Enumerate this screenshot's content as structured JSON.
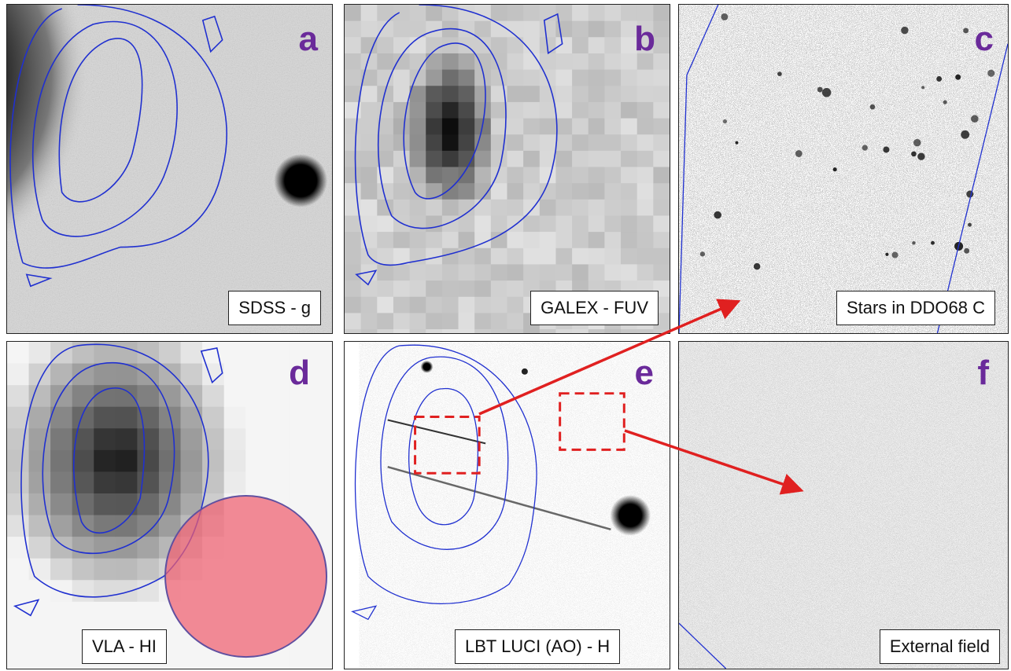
{
  "panels": {
    "a": {
      "letter": "a",
      "label": "SDSS - g"
    },
    "b": {
      "letter": "b",
      "label": "GALEX - FUV"
    },
    "c": {
      "letter": "c",
      "label": "Stars in DDO68 C"
    },
    "d": {
      "letter": "d",
      "label": "VLA - HI"
    },
    "e": {
      "letter": "e",
      "label": "LBT LUCI (AO) - H"
    },
    "f": {
      "letter": "f",
      "label": "External field"
    }
  },
  "colors": {
    "contour": "#2030d0",
    "letter": "#6a2a9a",
    "arrow": "#e02020",
    "beam_fill": "#f06070",
    "beam_stroke": "#6050a0"
  }
}
